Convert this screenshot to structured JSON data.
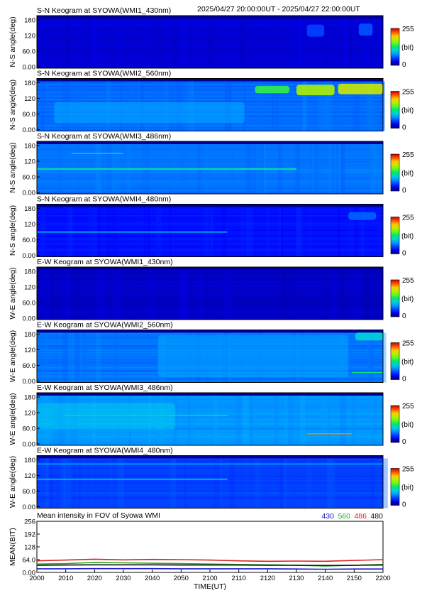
{
  "header": {
    "time_range": "2025/04/27 20:00:00UT - 2025/04/27 22:00:00UT"
  },
  "colorbar": {
    "max_label": "255",
    "unit_label": "(bit)",
    "min_label": "0"
  },
  "keograms": [
    {
      "title": "S-N Keogram at SYOWA(WMI1_430nm)",
      "ylabel": "N-S angle(deg)",
      "ticks": [
        "180",
        "120",
        "60.0",
        "0.00"
      ],
      "base_level": 0.08,
      "features": [
        {
          "kind": "patch",
          "t0": 0.78,
          "t1": 0.83,
          "a0": 0.6,
          "a1": 0.83,
          "level": 0.2
        },
        {
          "kind": "patch",
          "t0": 0.93,
          "t1": 0.97,
          "a0": 0.62,
          "a1": 0.85,
          "level": 0.22
        }
      ]
    },
    {
      "title": "S-N Keogram at SYOWA(WMI2_560nm)",
      "ylabel": "N-S angle(deg)",
      "ticks": [
        "180",
        "120",
        "60.0",
        "0.00"
      ],
      "base_level": 0.25,
      "features": [
        {
          "kind": "band",
          "t0": 0.05,
          "t1": 0.6,
          "a0": 0.15,
          "a1": 0.55,
          "level": 0.33
        },
        {
          "kind": "patch",
          "t0": 0.63,
          "t1": 0.73,
          "a0": 0.72,
          "a1": 0.86,
          "level": 0.55
        },
        {
          "kind": "patch",
          "t0": 0.75,
          "t1": 0.86,
          "a0": 0.68,
          "a1": 0.88,
          "level": 0.68
        },
        {
          "kind": "patch",
          "t0": 0.87,
          "t1": 1.0,
          "a0": 0.7,
          "a1": 0.9,
          "level": 0.72
        }
      ]
    },
    {
      "title": "S-N Keogram at SYOWA(WMI3_486nm)",
      "ylabel": "N-S angle(deg)",
      "ticks": [
        "180",
        "120",
        "60.0",
        "0.00"
      ],
      "base_level": 0.26,
      "features": [
        {
          "kind": "line",
          "t0": 0.0,
          "t1": 0.75,
          "a0": 0.46,
          "a1": 0.49,
          "level": 0.45
        },
        {
          "kind": "line",
          "t0": 0.1,
          "t1": 0.25,
          "a0": 0.76,
          "a1": 0.78,
          "level": 0.4
        }
      ]
    },
    {
      "title": "S-N Keogram at SYOWA(WMI4_480nm)",
      "ylabel": "N-S angle(deg)",
      "ticks": [
        "180",
        "120",
        "60.0",
        "0.00"
      ],
      "base_level": 0.14,
      "features": [
        {
          "kind": "line",
          "t0": 0.0,
          "t1": 0.55,
          "a0": 0.46,
          "a1": 0.48,
          "level": 0.38
        },
        {
          "kind": "patch",
          "t0": 0.9,
          "t1": 0.98,
          "a0": 0.7,
          "a1": 0.85,
          "level": 0.24
        }
      ]
    },
    {
      "title": "E-W Keogram at SYOWA(WMI1_430nm)",
      "ylabel": "W-E angle(deg)",
      "ticks": [
        "180",
        "120",
        "60.0",
        "0.00"
      ],
      "base_level": 0.07,
      "features": []
    },
    {
      "title": "E-W Keogram at SYOWA(WMI2_560nm)",
      "ylabel": "W-E angle(deg)",
      "ticks": [
        "180",
        "120",
        "60.0",
        "0.00"
      ],
      "base_level": 0.26,
      "features": [
        {
          "kind": "band",
          "t0": 0.35,
          "t1": 0.9,
          "a0": 0.1,
          "a1": 0.9,
          "level": 0.32
        },
        {
          "kind": "line",
          "t0": 0.91,
          "t1": 1.0,
          "a0": 0.18,
          "a1": 0.2,
          "level": 0.5
        },
        {
          "kind": "patch",
          "t0": 0.92,
          "t1": 1.0,
          "a0": 0.8,
          "a1": 0.95,
          "level": 0.4
        }
      ]
    },
    {
      "title": "E-W Keogram at SYOWA(WMI3_486nm)",
      "ylabel": "W-E angle(deg)",
      "ticks": [
        "180",
        "120",
        "60.0",
        "0.00"
      ],
      "base_level": 0.3,
      "features": [
        {
          "kind": "line",
          "t0": 0.08,
          "t1": 0.55,
          "a0": 0.56,
          "a1": 0.58,
          "level": 0.5
        },
        {
          "kind": "line",
          "t0": 0.78,
          "t1": 0.91,
          "a0": 0.21,
          "a1": 0.23,
          "level": 0.86
        },
        {
          "kind": "band",
          "t0": 0.0,
          "t1": 0.4,
          "a0": 0.3,
          "a1": 0.8,
          "level": 0.38
        }
      ]
    },
    {
      "title": "E-W Keogram at SYOWA(WMI4_480nm)",
      "ylabel": "W-E angle(deg)",
      "ticks": [
        "180",
        "120",
        "60.0",
        "0.00"
      ],
      "base_level": 0.2,
      "features": [
        {
          "kind": "line",
          "t0": 0.0,
          "t1": 0.55,
          "a0": 0.54,
          "a1": 0.56,
          "level": 0.42
        },
        {
          "kind": "line",
          "t0": 0.0,
          "t1": 1.0,
          "a0": 0.83,
          "a1": 0.85,
          "level": 0.32
        }
      ]
    }
  ],
  "chart_data": {
    "type": "line",
    "title": "Mean intensity in FOV of Syowa WMI",
    "ylabel": "MEAN(BIT)",
    "xlabel": "TIME(UT)",
    "xlim": [
      2000,
      2200
    ],
    "ylim": [
      0,
      256
    ],
    "x_tick_labels": [
      "2000",
      "2010",
      "2020",
      "2030",
      "2040",
      "2050",
      "2100",
      "2110",
      "2120",
      "2130",
      "2140",
      "2150",
      "2200"
    ],
    "y_tick_labels": [
      "256",
      "192",
      "128",
      "64.0",
      "0.00"
    ],
    "y_tick_values": [
      256,
      192,
      128,
      64,
      0
    ],
    "x": [
      0,
      10,
      20,
      30,
      40,
      50,
      60,
      70,
      80,
      90,
      100,
      110,
      120
    ],
    "series": [
      {
        "name": "430",
        "color": "#1a1acc",
        "values": [
          18,
          18,
          19,
          19,
          19,
          18,
          18,
          18,
          18,
          17,
          16,
          17,
          17
        ]
      },
      {
        "name": "560",
        "color": "#22aa22",
        "values": [
          42,
          44,
          50,
          48,
          46,
          44,
          42,
          40,
          38,
          36,
          32,
          36,
          40
        ]
      },
      {
        "name": "486",
        "color": "#dd2222",
        "values": [
          58,
          62,
          66,
          63,
          65,
          64,
          62,
          58,
          56,
          57,
          56,
          60,
          64
        ]
      },
      {
        "name": "480",
        "color": "#111111",
        "values": [
          36,
          37,
          38,
          38,
          38,
          37,
          37,
          37,
          36,
          36,
          35,
          36,
          37
        ]
      }
    ]
  }
}
